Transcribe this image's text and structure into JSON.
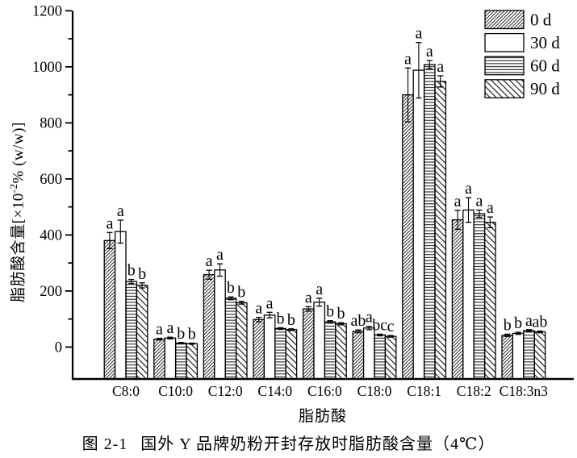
{
  "caption": {
    "figure_label": "图 2-1",
    "text": "国外 Y 品牌奶粉开封存放时脂肪酸含量（4℃）"
  },
  "chart_data": {
    "type": "bar",
    "xlabel": "脂肪酸",
    "ylabel": {
      "prefix": "脂肪酸含量[×10",
      "superscript": "-2",
      "suffix": "% (w/w)]"
    },
    "ylim": [
      0,
      1200
    ],
    "yticks": [
      0,
      200,
      400,
      600,
      800,
      1000,
      1200
    ],
    "minor_tick_step": 100,
    "grid": false,
    "legend_position": "top-right",
    "bar_outline_color": "#000000",
    "background_color": "#ffffff",
    "categories": [
      "C8:0",
      "C10:0",
      "C12:0",
      "C14:0",
      "C16:0",
      "C18:0",
      "C18:1",
      "C18:2",
      "C18:3n3"
    ],
    "series": [
      {
        "name": "0 d",
        "pattern": "diagonal-forward",
        "values": [
          380,
          28,
          258,
          98,
          136,
          56,
          900,
          454,
          42
        ],
        "errors": [
          29,
          3,
          16,
          8,
          8,
          5,
          96,
          34,
          4
        ],
        "letters": [
          "a",
          "a",
          "a",
          "a",
          "a",
          "ab",
          "a",
          "a",
          "b"
        ]
      },
      {
        "name": "30 d",
        "pattern": "solid-white",
        "values": [
          412,
          32,
          275,
          114,
          160,
          68,
          988,
          489,
          49
        ],
        "errors": [
          41,
          3,
          22,
          10,
          14,
          6,
          99,
          44,
          4
        ],
        "letters": [
          "a",
          "a",
          "a",
          "a",
          "a",
          "a",
          "a",
          "a",
          "b"
        ]
      },
      {
        "name": "60 d",
        "pattern": "horizontal-lines",
        "values": [
          234,
          14,
          174,
          66,
          90,
          43,
          1008,
          476,
          59
        ],
        "errors": [
          7,
          2,
          5,
          3,
          4,
          3,
          14,
          13,
          3
        ],
        "letters": [
          "b",
          "b",
          "b",
          "b",
          "b",
          "bc",
          "a",
          "a",
          "a"
        ]
      },
      {
        "name": "90 d",
        "pattern": "diagonal-back",
        "values": [
          220,
          12,
          158,
          62,
          83,
          38,
          948,
          445,
          54
        ],
        "errors": [
          9,
          2,
          5,
          3,
          4,
          3,
          20,
          19,
          3
        ],
        "letters": [
          "b",
          "b",
          "b",
          "b",
          "b",
          "c",
          "a",
          "a",
          "ab"
        ]
      }
    ]
  }
}
